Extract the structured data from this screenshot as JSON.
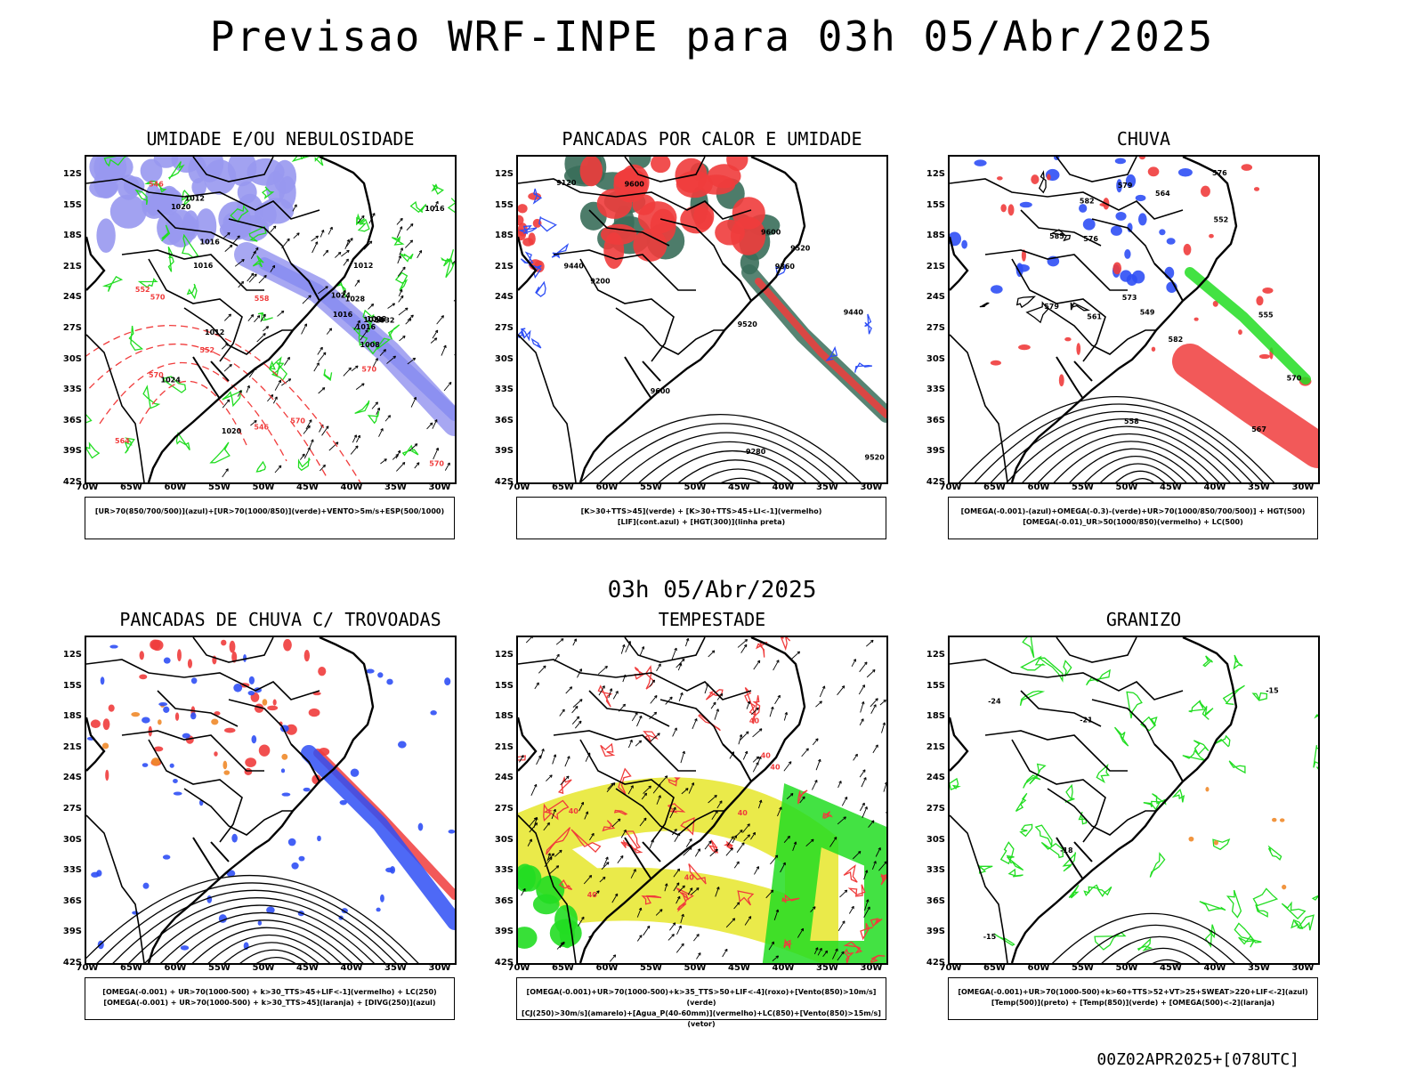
{
  "main_title": "Previsao WRF-INPE  para 03h 05/Abr/2025",
  "mid_title": "03h 05/Abr/2025",
  "footer": "00Z02APR2025+[078UTC]",
  "lat_ticks": [
    "12S",
    "15S",
    "18S",
    "21S",
    "24S",
    "27S",
    "30S",
    "33S",
    "36S",
    "39S",
    "42S"
  ],
  "lon_ticks": [
    "70W",
    "65W",
    "60W",
    "55W",
    "50W",
    "45W",
    "40W",
    "35W",
    "30W"
  ],
  "panels": [
    {
      "title": "UMIDADE E/OU NEBULOSIDADE",
      "legend": [
        "[UR>70(850/700/500)](azul)+[UR>70(1000/850)](verde)+VENTO>5m/s+ESP(500/1000)"
      ],
      "contour_labels": [
        "1012",
        "1016",
        "1016",
        "1012",
        "1016",
        "1016",
        "1020",
        "1024",
        "1028",
        "1028",
        "1024",
        "1020",
        "1016",
        "1012",
        "1032",
        "1028",
        "1008",
        "570",
        "570",
        "570",
        "564",
        "570",
        "558",
        "552",
        "546",
        "570",
        "552",
        "546"
      ]
    },
    {
      "title": "PANCADAS POR CALOR E UMIDADE",
      "legend": [
        "[K>30+TTS>45](verde) + [K>30+TTS>45+LI<-1](vermelho)",
        "[LIF](cont.azul) + [HGT(300)](linha preta)"
      ],
      "contour_labels": [
        "9600",
        "9520",
        "9600",
        "9520",
        "9440",
        "9360",
        "9280",
        "9200",
        "9120",
        "9440",
        "9600",
        "9520"
      ]
    },
    {
      "title": "CHUVA",
      "legend": [
        "[OMEGA(-0.001)-(azul)+OMEGA(-0.3)-(verde)+UR>70(1000/850/700/500)] + HGT(500)",
        "[OMEGA(-0.01)_UR>50(1000/850)(vermelho) + LC(500)"
      ],
      "contour_labels": [
        "582",
        "585",
        "579",
        "576",
        "573",
        "570",
        "567",
        "564",
        "561",
        "558",
        "555",
        "552",
        "549",
        "576",
        "579",
        "582"
      ]
    },
    {
      "title": "PANCADAS DE CHUVA C/ TROVOADAS",
      "legend": [
        "[OMEGA(-0.001) + UR>70(1000-500) + k>30_TTS>45+LIF<-1](vermelho) + LC(250)",
        "[OMEGA(-0.001) + UR>70(1000-500) + k>30_TTS>45](laranja) + [DIVG(250)](azul)"
      ],
      "contour_labels": []
    },
    {
      "title": "TEMPESTADE",
      "legend": [
        "[OMEGA(-0.001)+UR>70(1000-500)+k>35_TTS>50+LIF<-4](roxo)+[Vento(850)>10m/s](verde)",
        "[CJ(250)>30m/s](amarelo)+[Agua_P(40-60mm)](vermelho)+LC(850)+[Vento(850)>15m/s](vetor)"
      ],
      "contour_labels": [
        "40",
        "40",
        "40",
        "40",
        "40",
        "40",
        "40"
      ]
    },
    {
      "title": "GRANIZO",
      "legend": [
        "[OMEGA(-0.001)+UR>70(1000-500)+k>60+TTS>52+VT>25+SWEAT>220+LIF<-2](azul)",
        "[Temp(500)](preto) + [Temp(850)](verde) + [OMEGA(500)<-2](laranja)"
      ],
      "contour_labels": [
        "-15",
        "-18",
        "-21",
        "-15",
        "-24"
      ]
    }
  ],
  "colors": {
    "red": "#f03c3c",
    "green": "#22dd22",
    "blue": "#2f4ff5",
    "lightblue": "#9898f0",
    "yellow": "#e6e62a",
    "darkgreen": "#3a6e5a",
    "orange": "#f08a2a",
    "purple": "#a020f0"
  }
}
